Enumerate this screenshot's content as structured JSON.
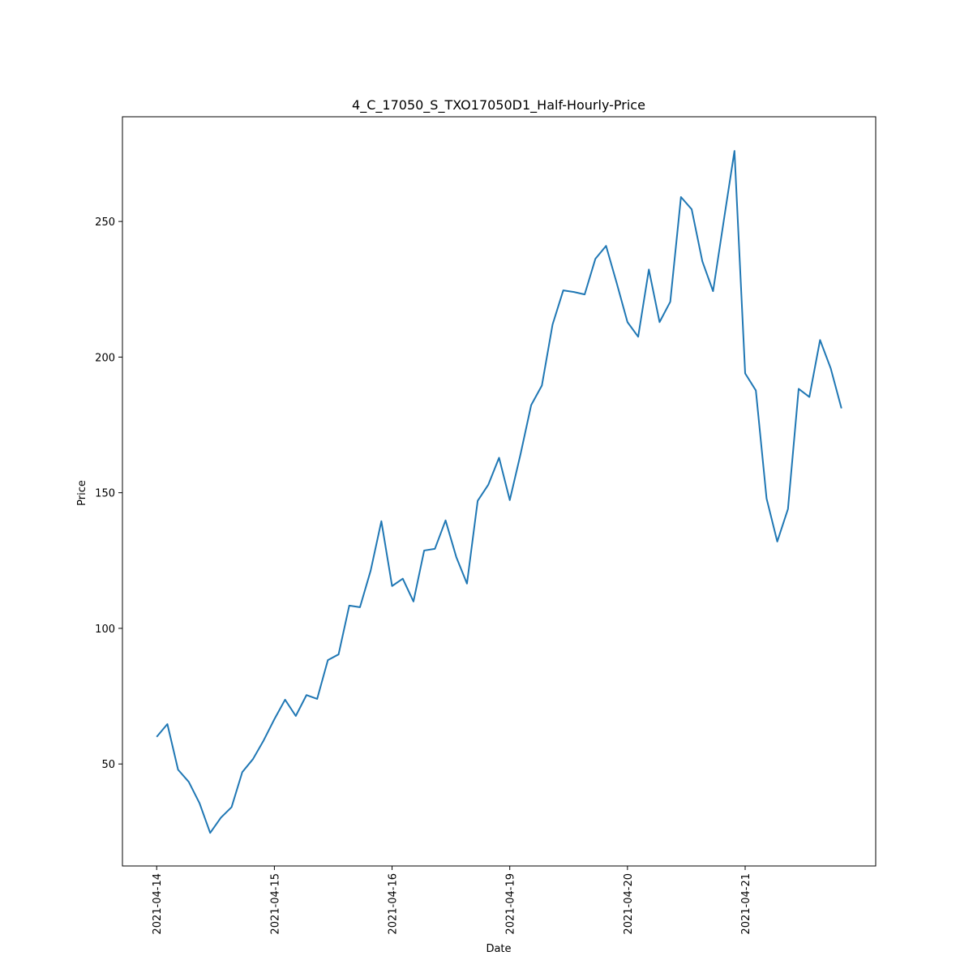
{
  "chart_data": {
    "type": "line",
    "title": "4_C_17050_S_TXO17050D1_Half-Hourly-Price",
    "x_label": "Date",
    "y_label": "Price",
    "categories": [
      "2021-04-14",
      null,
      null,
      null,
      null,
      null,
      null,
      null,
      null,
      null,
      null,
      "2021-04-15",
      null,
      null,
      null,
      null,
      null,
      null,
      null,
      null,
      null,
      null,
      "2021-04-16",
      null,
      null,
      null,
      null,
      null,
      null,
      null,
      null,
      null,
      null,
      "2021-04-19",
      null,
      null,
      null,
      null,
      null,
      null,
      null,
      null,
      null,
      null,
      "2021-04-20",
      null,
      null,
      null,
      null,
      null,
      null,
      null,
      null,
      null,
      null,
      "2021-04-21",
      null,
      null,
      null,
      null,
      null,
      null,
      null,
      null,
      null
    ],
    "series": [
      {
        "name": "Price",
        "color": "#1f77b4",
        "values": [
          60.0,
          64.7,
          47.9,
          43.4,
          35.6,
          24.6,
          30.2,
          34.1,
          47.0,
          51.8,
          58.7,
          66.5,
          73.7,
          67.7,
          75.4,
          74.0,
          88.3,
          90.4,
          108.4,
          107.8,
          121.3,
          139.5,
          115.6,
          118.3,
          109.9,
          128.7,
          129.3,
          139.8,
          126.3,
          116.5,
          147.0,
          153.0,
          162.9,
          147.3,
          164.1,
          182.3,
          189.5,
          212.0,
          224.6,
          224.0,
          223.1,
          236.2,
          241.0,
          227.2,
          212.9,
          207.5,
          232.3,
          212.9,
          220.4,
          259.0,
          254.5,
          235.3,
          224.3,
          250.3,
          276.0,
          194.0,
          187.7,
          147.9,
          132.0,
          144.0,
          188.3,
          185.3,
          206.3,
          195.8,
          181.1
        ]
      }
    ],
    "ylim": [
      12.4,
      288.6
    ],
    "yticks": [
      50,
      100,
      150,
      200,
      250
    ],
    "grid": false
  }
}
